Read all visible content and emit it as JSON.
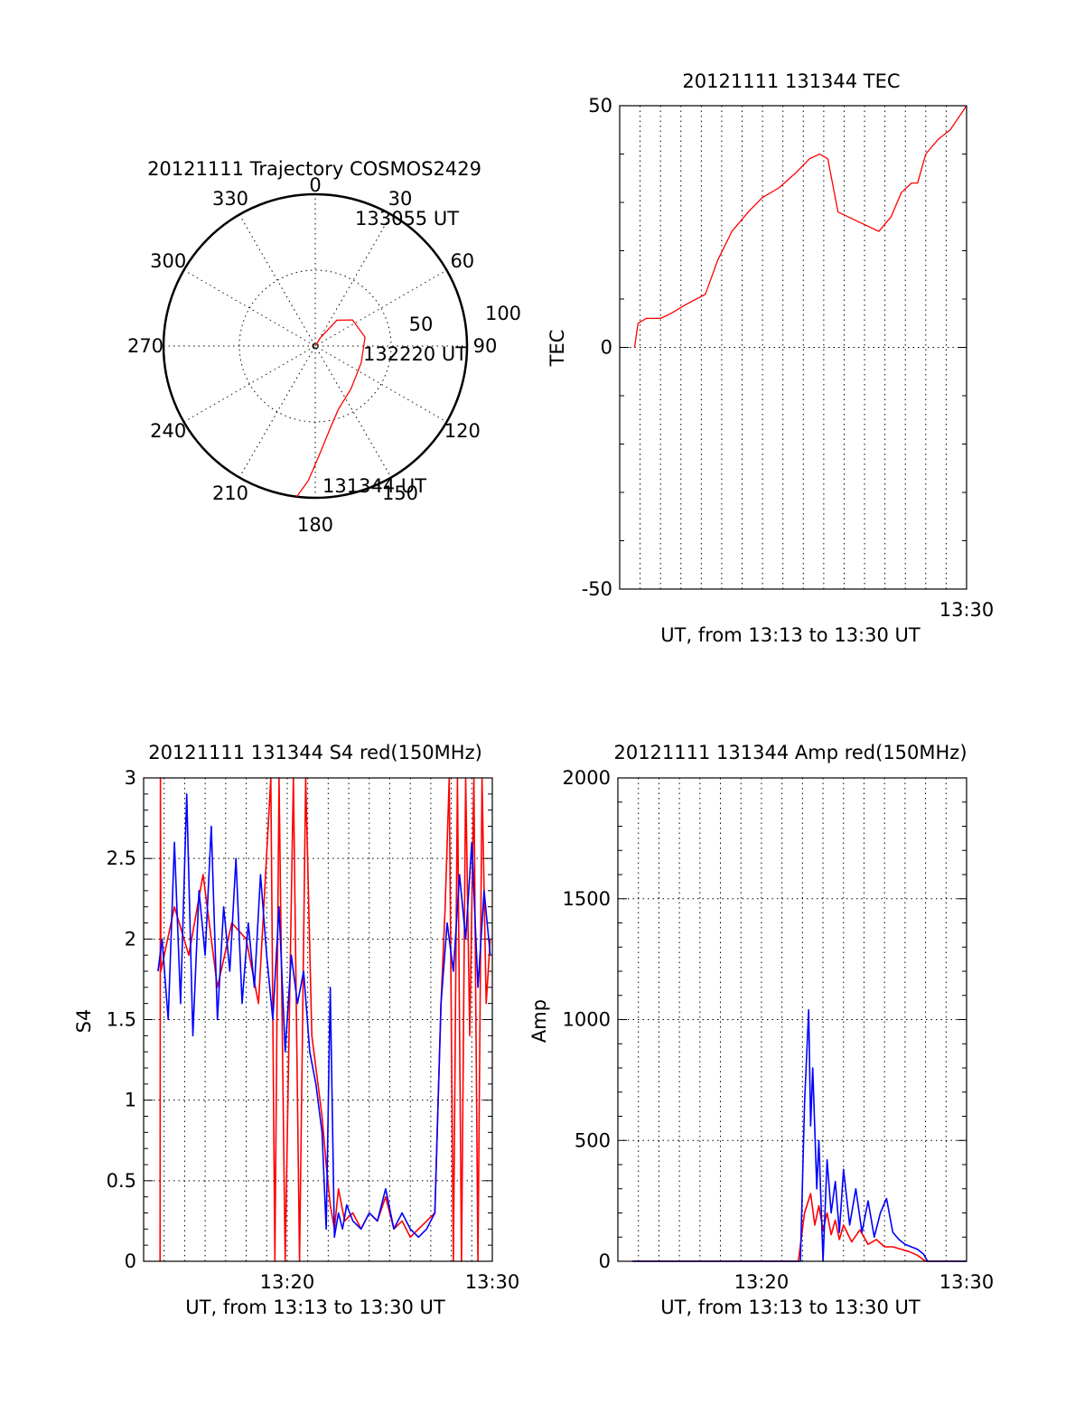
{
  "chart_data": [
    {
      "type": "polar",
      "title": "20121111 Trajectory COSMOS2429",
      "azimuth_labels": [
        "0",
        "30",
        "60",
        "90",
        "120",
        "150",
        "180",
        "210",
        "240",
        "270",
        "300",
        "330"
      ],
      "radial_labels": [
        "50",
        "100"
      ],
      "trajectory_labels": [
        "133055 UT",
        "132220 UT",
        "131344 UT"
      ],
      "series": [
        {
          "color": "#ff0000",
          "points": [
            [
              187,
              0
            ],
            [
              183,
              10
            ],
            [
              178,
              25
            ],
            [
              170,
              40
            ],
            [
              160,
              50
            ],
            [
              140,
              57
            ],
            [
              110,
              61
            ],
            [
              80,
              60
            ],
            [
              55,
              63
            ],
            [
              40,
              70
            ],
            [
              32,
              84
            ],
            [
              30,
              90
            ]
          ]
        }
      ]
    },
    {
      "type": "line",
      "title": "20121111 131344 TEC",
      "xlabel": "UT, from 13:13 to 13:30 UT",
      "ylabel": "TEC",
      "xlim": [
        13.0,
        30.0
      ],
      "ylim": [
        -50,
        50
      ],
      "yticks": [
        -50,
        0,
        50
      ],
      "xtick_labels": [
        {
          "x": 30.0,
          "label": "13:30"
        }
      ],
      "grid": true,
      "series": [
        {
          "color": "#ff0000",
          "x": [
            13.73,
            13.9,
            14.3,
            15.0,
            15.5,
            16.3,
            17.2,
            17.8,
            18.5,
            19.3,
            20.0,
            20.8,
            21.6,
            22.3,
            22.8,
            23.2,
            23.7,
            24.7,
            25.7,
            26.3,
            26.8,
            27.3,
            27.6,
            28.0,
            28.6,
            29.2,
            30.0
          ],
          "y": [
            0,
            5,
            6,
            6,
            7,
            9,
            11,
            18,
            24,
            28,
            31,
            33,
            36,
            39,
            40,
            39,
            28,
            26,
            24,
            27,
            32,
            34,
            34,
            40,
            43,
            45,
            50
          ]
        }
      ]
    },
    {
      "type": "line",
      "title": "20121111 131344 S4 red(150MHz)",
      "xlabel": "UT, from 13:13 to 13:30 UT",
      "ylabel": "S4",
      "xlim": [
        13.0,
        30.0
      ],
      "ylim": [
        0,
        3
      ],
      "yticks": [
        0,
        0.5,
        1,
        1.5,
        2,
        2.5,
        3
      ],
      "xtick_labels": [
        {
          "x": 20.0,
          "label": "13:20"
        },
        {
          "x": 30.0,
          "label": "13:30"
        }
      ],
      "grid": true,
      "series": [
        {
          "color": "#ff0000",
          "x": [
            13.8,
            13.82,
            13.84,
            14.5,
            15.2,
            15.9,
            16.6,
            17.3,
            18.0,
            18.6,
            19.2,
            19.4,
            19.6,
            19.9,
            20.3,
            20.6,
            20.9,
            21.2,
            21.5,
            21.7,
            21.9,
            22.1,
            22.3,
            22.5,
            22.8,
            23.2,
            23.6,
            24.0,
            24.4,
            24.8,
            25.2,
            25.6,
            26.0,
            26.4,
            26.8,
            27.2,
            27.5,
            27.7,
            27.9,
            28.1,
            28.3,
            28.5,
            28.7,
            28.9,
            29.1,
            29.3,
            29.5,
            29.7,
            29.9
          ],
          "y": [
            0,
            3,
            1.8,
            2.2,
            1.9,
            2.4,
            1.7,
            2.1,
            2.0,
            1.6,
            3,
            0,
            3,
            0,
            3,
            0,
            3,
            1.4,
            1.1,
            0.9,
            0.6,
            0.35,
            0.2,
            0.45,
            0.25,
            0.3,
            0.2,
            0.3,
            0.25,
            0.4,
            0.2,
            0.25,
            0.15,
            0.2,
            0.25,
            0.3,
            1.6,
            2.2,
            3,
            0,
            3,
            0,
            3,
            1.4,
            3,
            0,
            3,
            1.6,
            2.0
          ]
        },
        {
          "color": "#0000ff",
          "x": [
            13.7,
            13.9,
            14.2,
            14.5,
            14.8,
            15.1,
            15.4,
            15.7,
            16.0,
            16.3,
            16.6,
            16.9,
            17.2,
            17.5,
            17.8,
            18.1,
            18.4,
            18.7,
            19.0,
            19.3,
            19.6,
            19.9,
            20.2,
            20.5,
            20.8,
            21.1,
            21.4,
            21.7,
            21.9,
            22.1,
            22.3,
            22.5,
            22.7,
            22.9,
            23.2,
            23.6,
            24.0,
            24.4,
            24.8,
            25.2,
            25.6,
            26.0,
            26.4,
            26.8,
            27.2,
            27.5,
            27.8,
            28.1,
            28.4,
            28.7,
            29.0,
            29.3,
            29.6,
            29.9
          ],
          "y": [
            1.8,
            2.0,
            1.5,
            2.6,
            1.6,
            2.9,
            1.4,
            2.3,
            1.9,
            2.7,
            1.5,
            2.2,
            1.8,
            2.5,
            1.6,
            2.1,
            1.7,
            2.4,
            1.9,
            1.5,
            2.2,
            1.3,
            1.9,
            1.6,
            1.8,
            1.3,
            1.1,
            0.8,
            0.2,
            1.7,
            0.15,
            0.3,
            0.2,
            0.35,
            0.25,
            0.2,
            0.3,
            0.25,
            0.45,
            0.2,
            0.3,
            0.2,
            0.15,
            0.2,
            0.3,
            1.6,
            2.1,
            1.8,
            2.4,
            2.0,
            2.6,
            1.7,
            2.3,
            1.9
          ]
        }
      ]
    },
    {
      "type": "line",
      "title": "20121111 131344 Amp red(150MHz)",
      "xlabel": "UT, from 13:13 to 13:30 UT",
      "ylabel": "Amp",
      "xlim": [
        13.0,
        30.0
      ],
      "ylim": [
        0,
        2000
      ],
      "yticks": [
        0,
        500,
        1000,
        1500,
        2000
      ],
      "xtick_labels": [
        {
          "x": 20.0,
          "label": "13:20"
        },
        {
          "x": 30.0,
          "label": "13:30"
        }
      ],
      "grid": true,
      "series": [
        {
          "color": "#ff0000",
          "x": [
            13.7,
            21.8,
            22.1,
            22.4,
            22.6,
            22.8,
            23.0,
            23.2,
            23.4,
            23.6,
            23.8,
            24.0,
            24.4,
            24.8,
            25.2,
            25.6,
            26.0,
            26.4,
            26.8,
            27.2,
            27.6,
            28.0,
            30.0
          ],
          "y": [
            0,
            0,
            200,
            280,
            150,
            230,
            130,
            200,
            110,
            170,
            90,
            150,
            80,
            130,
            70,
            90,
            60,
            60,
            50,
            40,
            25,
            0,
            0
          ]
        },
        {
          "color": "#0000ff",
          "x": [
            13.7,
            21.9,
            22.1,
            22.3,
            22.4,
            22.5,
            22.7,
            22.8,
            23.0,
            23.2,
            23.4,
            23.6,
            23.8,
            24.0,
            24.3,
            24.6,
            24.9,
            25.2,
            25.5,
            25.8,
            26.1,
            26.4,
            26.7,
            27.0,
            27.3,
            27.6,
            27.9,
            28.1,
            30.0
          ],
          "y": [
            0,
            0,
            650,
            1040,
            560,
            800,
            300,
            500,
            0,
            420,
            200,
            330,
            120,
            380,
            150,
            300,
            120,
            250,
            100,
            200,
            260,
            120,
            90,
            70,
            60,
            50,
            30,
            0,
            0
          ]
        }
      ]
    }
  ]
}
